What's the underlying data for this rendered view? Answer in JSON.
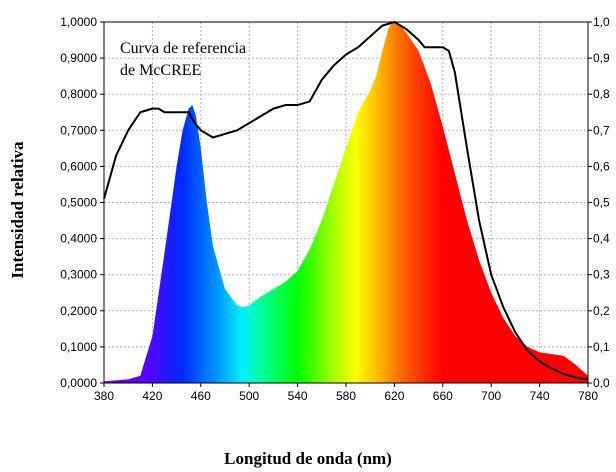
{
  "chart_data": {
    "type": "area",
    "xlabel": "Longitud de onda (nm)",
    "ylabel": "Intensidad relativa",
    "xlim": [
      380,
      780
    ],
    "ylim": [
      0,
      1
    ],
    "x_ticks": [
      "380",
      "420",
      "460",
      "500",
      "540",
      "580",
      "620",
      "660",
      "700",
      "740",
      "780"
    ],
    "y_ticks_left": [
      "0,0000",
      "0,1000",
      "0,2000",
      "0,3000",
      "0,4000",
      "0,5000",
      "0,6000",
      "0,7000",
      "0,8000",
      "0,9000",
      "1,0000"
    ],
    "y_ticks_right": [
      "0,0",
      "0,1",
      "0,2",
      "0,3",
      "0,4",
      "0,5",
      "0,6",
      "0,7",
      "0,8",
      "0,9",
      "1,0"
    ],
    "grid": true,
    "annotation": {
      "lines": [
        "Curva de referencia",
        "de McCREE"
      ]
    },
    "series": [
      {
        "style": "filled spectrum",
        "x": [
          380,
          400,
          410,
          420,
          430,
          440,
          445,
          450,
          453,
          456,
          460,
          465,
          470,
          480,
          490,
          495,
          500,
          510,
          520,
          530,
          540,
          550,
          560,
          570,
          580,
          590,
          600,
          605,
          610,
          615,
          618,
          620,
          625,
          630,
          640,
          650,
          660,
          670,
          680,
          690,
          700,
          710,
          720,
          730,
          740,
          750,
          760,
          770,
          780
        ],
        "y": [
          0.005,
          0.01,
          0.02,
          0.13,
          0.36,
          0.6,
          0.7,
          0.76,
          0.77,
          0.74,
          0.65,
          0.5,
          0.38,
          0.26,
          0.215,
          0.21,
          0.215,
          0.24,
          0.26,
          0.28,
          0.31,
          0.37,
          0.45,
          0.55,
          0.65,
          0.75,
          0.81,
          0.85,
          0.92,
          0.98,
          1.0,
          1.0,
          0.99,
          0.97,
          0.92,
          0.83,
          0.71,
          0.58,
          0.45,
          0.34,
          0.25,
          0.18,
          0.13,
          0.1,
          0.085,
          0.08,
          0.075,
          0.05,
          0.02
        ]
      },
      {
        "style": "black line",
        "x": [
          380,
          390,
          400,
          410,
          420,
          425,
          430,
          440,
          450,
          455,
          460,
          470,
          480,
          490,
          500,
          510,
          520,
          530,
          540,
          550,
          560,
          570,
          580,
          590,
          600,
          610,
          620,
          630,
          640,
          645,
          650,
          660,
          665,
          670,
          680,
          690,
          700,
          710,
          720,
          730,
          740,
          750,
          760,
          770,
          780
        ],
        "y": [
          0.51,
          0.63,
          0.7,
          0.75,
          0.76,
          0.76,
          0.75,
          0.75,
          0.75,
          0.72,
          0.7,
          0.68,
          0.69,
          0.7,
          0.72,
          0.74,
          0.76,
          0.77,
          0.77,
          0.78,
          0.84,
          0.88,
          0.91,
          0.93,
          0.96,
          0.99,
          1.0,
          0.98,
          0.95,
          0.93,
          0.93,
          0.93,
          0.92,
          0.86,
          0.65,
          0.45,
          0.3,
          0.21,
          0.14,
          0.09,
          0.06,
          0.04,
          0.025,
          0.015,
          0.01
        ]
      }
    ]
  }
}
